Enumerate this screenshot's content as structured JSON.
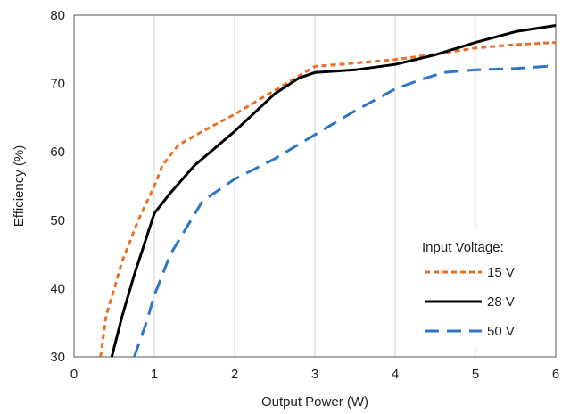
{
  "chart_data": {
    "type": "line",
    "xlabel": "Output Power (W)",
    "ylabel": "Efficiency (%)",
    "xlim": [
      0,
      6
    ],
    "ylim": [
      30,
      80
    ],
    "xticks": [
      "0",
      "1",
      "2",
      "3",
      "4",
      "5",
      "6"
    ],
    "yticks": [
      "30",
      "40",
      "50",
      "60",
      "70",
      "80"
    ],
    "grid": "vertical",
    "legend": {
      "title": "Input Voltage:",
      "placement": "bottom-right"
    },
    "series": [
      {
        "name": "15 V",
        "color": "#E8702A",
        "dash": "dotted",
        "points": [
          [
            0.33,
            30
          ],
          [
            0.4,
            36
          ],
          [
            0.6,
            44
          ],
          [
            0.8,
            50
          ],
          [
            1.0,
            55
          ],
          [
            1.1,
            58
          ],
          [
            1.3,
            61
          ],
          [
            1.6,
            63
          ],
          [
            2.0,
            65.5
          ],
          [
            2.5,
            69
          ],
          [
            3.0,
            72.5
          ],
          [
            3.3,
            72.8
          ],
          [
            4.0,
            73.5
          ],
          [
            4.5,
            74.3
          ],
          [
            5.0,
            75.2
          ],
          [
            5.5,
            75.7
          ],
          [
            6.0,
            76
          ]
        ]
      },
      {
        "name": "28 V",
        "color": "#000000",
        "dash": "solid",
        "points": [
          [
            0.47,
            30
          ],
          [
            0.6,
            36
          ],
          [
            0.75,
            42
          ],
          [
            1.0,
            51
          ],
          [
            1.2,
            54
          ],
          [
            1.5,
            58
          ],
          [
            2.0,
            63
          ],
          [
            2.5,
            68.5
          ],
          [
            2.8,
            70.8
          ],
          [
            3.0,
            71.6
          ],
          [
            3.5,
            72
          ],
          [
            4.0,
            72.8
          ],
          [
            4.5,
            74.2
          ],
          [
            5.0,
            76
          ],
          [
            5.5,
            77.6
          ],
          [
            6.0,
            78.5
          ]
        ]
      },
      {
        "name": "50 V",
        "color": "#2E75C6",
        "dash": "dashed",
        "points": [
          [
            0.75,
            30
          ],
          [
            0.9,
            35
          ],
          [
            1.0,
            39
          ],
          [
            1.2,
            45
          ],
          [
            1.6,
            52.8
          ],
          [
            2.0,
            56
          ],
          [
            2.5,
            59
          ],
          [
            3.0,
            62.5
          ],
          [
            3.5,
            66
          ],
          [
            4.0,
            69.2
          ],
          [
            4.3,
            70.5
          ],
          [
            4.6,
            71.6
          ],
          [
            5.0,
            72
          ],
          [
            5.5,
            72.2
          ],
          [
            6.0,
            72.6
          ]
        ]
      }
    ]
  }
}
